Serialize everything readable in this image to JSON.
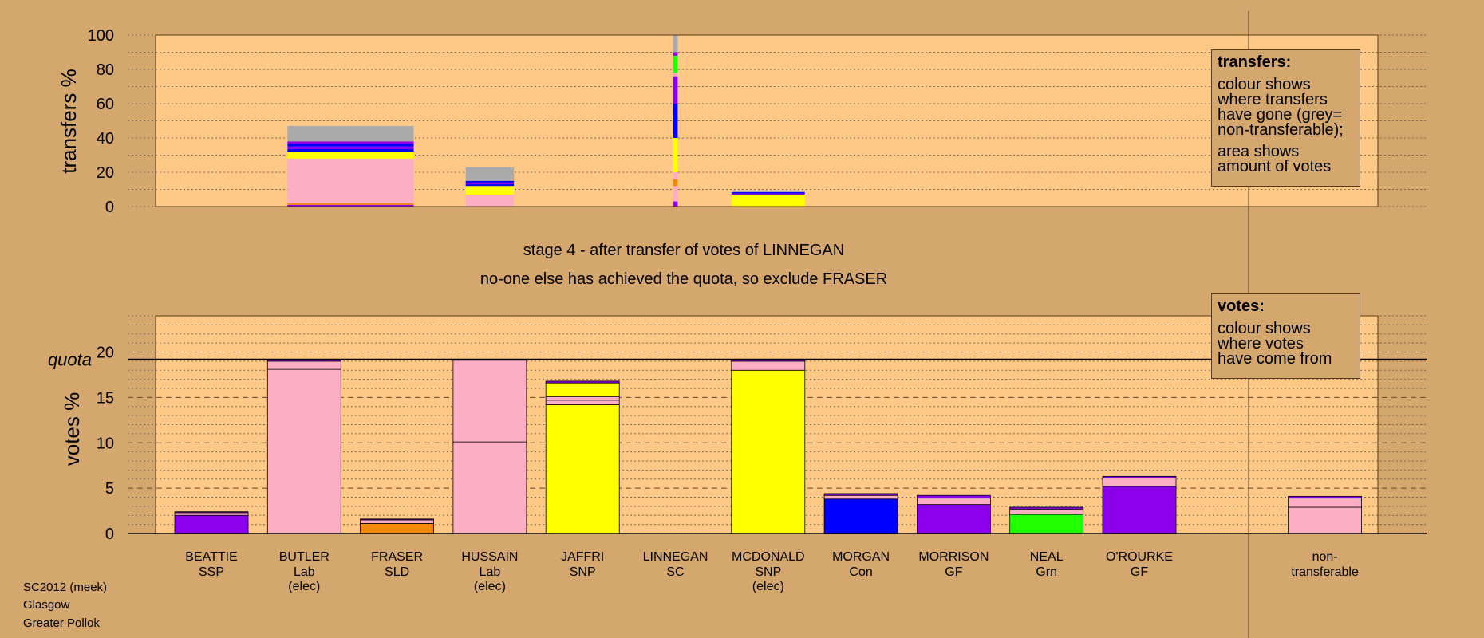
{
  "header": {
    "stage_line": "stage 4 - after transfer of votes of LINNEGAN",
    "action_line": "no-one else has achieved the quota, so exclude FRASER"
  },
  "footer": {
    "election": "SC2012 (meek)",
    "council": "Glasgow",
    "ward": "Greater Pollok"
  },
  "legend_transfers": {
    "title": "transfers:",
    "lines_a": [
      "colour shows",
      "where transfers",
      "have gone (grey=",
      "non-transferable);"
    ],
    "lines_b": [
      "area shows",
      "amount of votes"
    ]
  },
  "legend_votes": {
    "title": "votes:",
    "lines": [
      "colour shows",
      "where votes",
      "have come from"
    ]
  },
  "colors": {
    "background": "#d4a76f",
    "plot_bg": "#fec986",
    "SSP": "#8b00ea",
    "Lab": "#fbaec4",
    "SLD": "#f3890a",
    "SNP": "#ffff00",
    "SC": "#d3d3d3",
    "Con": "#0000ff",
    "GF": "#8b00ea",
    "Grn": "#22ff00",
    "nontransferable": "#aaaaaa"
  },
  "chart_data": [
    {
      "type": "bar",
      "stacked": true,
      "ylabel": "transfers %",
      "ylim": [
        0,
        100
      ],
      "yticks": [
        0,
        20,
        40,
        60,
        80,
        100
      ],
      "grid": true,
      "bars": [
        {
          "position": 1.5,
          "width": 1.36,
          "segments": [
            {
              "color": "#8b00ea",
              "value": 1
            },
            {
              "color": "#f3890a",
              "value": 1
            },
            {
              "color": "#fbaec4",
              "value": 26
            },
            {
              "color": "#ffff00",
              "value": 4
            },
            {
              "color": "#0000ff",
              "value": 1.5
            },
            {
              "color": "#8b00ea",
              "value": 1.5
            },
            {
              "color": "#0000ff",
              "value": 1.5
            },
            {
              "color": "#8b00ea",
              "value": 1.5
            },
            {
              "color": "#aaaaaa",
              "value": 9
            }
          ]
        },
        {
          "position": 3.0,
          "width": 0.52,
          "segments": [
            {
              "color": "#fbaec4",
              "value": 7
            },
            {
              "color": "#ffff00",
              "value": 5
            },
            {
              "color": "#0000ff",
              "value": 1
            },
            {
              "color": "#8b00ea",
              "value": 1
            },
            {
              "color": "#0000ff",
              "value": 1
            },
            {
              "color": "#aaaaaa",
              "value": 8
            }
          ]
        },
        {
          "position": 5.0,
          "width": 0.05,
          "segments": [
            {
              "color": "#8b00ea",
              "value": 3
            },
            {
              "color": "#fbaec4",
              "value": 9
            },
            {
              "color": "#f3890a",
              "value": 4
            },
            {
              "color": "#fbaec4",
              "value": 4
            },
            {
              "color": "#ffff00",
              "value": 20
            },
            {
              "color": "#0000ff",
              "value": 20
            },
            {
              "color": "#8b00ea",
              "value": 16
            },
            {
              "color": "#fbaec4",
              "value": 2
            },
            {
              "color": "#22ff00",
              "value": 10
            },
            {
              "color": "#8b00ea",
              "value": 2
            },
            {
              "color": "#aaaaaa",
              "value": 10
            }
          ]
        },
        {
          "position": 6.0,
          "width": 0.79,
          "segments": [
            {
              "color": "#ffff00",
              "value": 7
            },
            {
              "color": "#8b00ea",
              "value": 0.6
            },
            {
              "color": "#0000ff",
              "value": 0.8
            },
            {
              "color": "#aaaaaa",
              "value": 1
            }
          ]
        }
      ]
    },
    {
      "type": "bar",
      "stacked": true,
      "ylabel": "votes %",
      "ylim": [
        0,
        24
      ],
      "yticks": [
        0,
        5,
        10,
        15,
        20
      ],
      "grid": true,
      "quota": {
        "label": "quota",
        "value": 19.2
      },
      "candidates": [
        {
          "name": "BEATTIE",
          "party": "SSP",
          "note": "",
          "segments": [
            {
              "color": "#8b00ea",
              "value": 2.0
            },
            {
              "color": "#fbaec4",
              "value": 0.3
            },
            {
              "color": "#8b00ea",
              "value": 0.1
            }
          ]
        },
        {
          "name": "BUTLER",
          "party": "Lab",
          "note": "(elec)",
          "segments": [
            {
              "color": "#fbaec4",
              "value": 18.1
            },
            {
              "color": "#fbaec4",
              "value": 0.9
            },
            {
              "color": "#8b00ea",
              "value": 0.2
            }
          ]
        },
        {
          "name": "FRASER",
          "party": "SLD",
          "note": "",
          "segments": [
            {
              "color": "#f3890a",
              "value": 1.1
            },
            {
              "color": "#fbaec4",
              "value": 0.4
            },
            {
              "color": "#8b00ea",
              "value": 0.1
            }
          ]
        },
        {
          "name": "HUSSAIN",
          "party": "Lab",
          "note": "(elec)",
          "segments": [
            {
              "color": "#fbaec4",
              "value": 10.1
            },
            {
              "color": "#fbaec4",
              "value": 9.0
            },
            {
              "color": "#8b00ea",
              "value": 0.1
            }
          ]
        },
        {
          "name": "JAFFRI",
          "party": "SNP",
          "note": "",
          "segments": [
            {
              "color": "#ffff00",
              "value": 14.2
            },
            {
              "color": "#fbaec4",
              "value": 0.5
            },
            {
              "color": "#fbaec4",
              "value": 0.4
            },
            {
              "color": "#ffff00",
              "value": 1.5
            },
            {
              "color": "#8b00ea",
              "value": 0.2
            }
          ]
        },
        {
          "name": "LINNEGAN",
          "party": "SC",
          "note": "",
          "segments": []
        },
        {
          "name": "MCDONALD",
          "party": "SNP",
          "note": "(elec)",
          "segments": [
            {
              "color": "#ffff00",
              "value": 18.0
            },
            {
              "color": "#fbaec4",
              "value": 1.0
            },
            {
              "color": "#8b00ea",
              "value": 0.2
            }
          ]
        },
        {
          "name": "MORGAN",
          "party": "Con",
          "note": "",
          "segments": [
            {
              "color": "#0000ff",
              "value": 3.8
            },
            {
              "color": "#fbaec4",
              "value": 0.4
            },
            {
              "color": "#8b00ea",
              "value": 0.2
            }
          ]
        },
        {
          "name": "MORRISON",
          "party": "GF",
          "note": "",
          "segments": [
            {
              "color": "#8b00ea",
              "value": 3.2
            },
            {
              "color": "#fbaec4",
              "value": 0.7
            },
            {
              "color": "#8b00ea",
              "value": 0.3
            }
          ]
        },
        {
          "name": "NEAL",
          "party": "Grn",
          "note": "",
          "segments": [
            {
              "color": "#22ff00",
              "value": 2.1
            },
            {
              "color": "#fbaec4",
              "value": 0.6
            },
            {
              "color": "#8b00ea",
              "value": 0.2
            }
          ]
        },
        {
          "name": "O'ROURKE",
          "party": "GF",
          "note": "",
          "segments": [
            {
              "color": "#8b00ea",
              "value": 5.2
            },
            {
              "color": "#fbaec4",
              "value": 0.9
            },
            {
              "color": "#8b00ea",
              "value": 0.2
            }
          ]
        }
      ],
      "nontransferable": {
        "label_1": "non-",
        "label_2": "transferable",
        "segments": [
          {
            "color": "#fbaec4",
            "value": 2.9
          },
          {
            "color": "#fbaec4",
            "value": 1.0
          },
          {
            "color": "#8b00ea",
            "value": 0.2
          }
        ]
      }
    }
  ]
}
